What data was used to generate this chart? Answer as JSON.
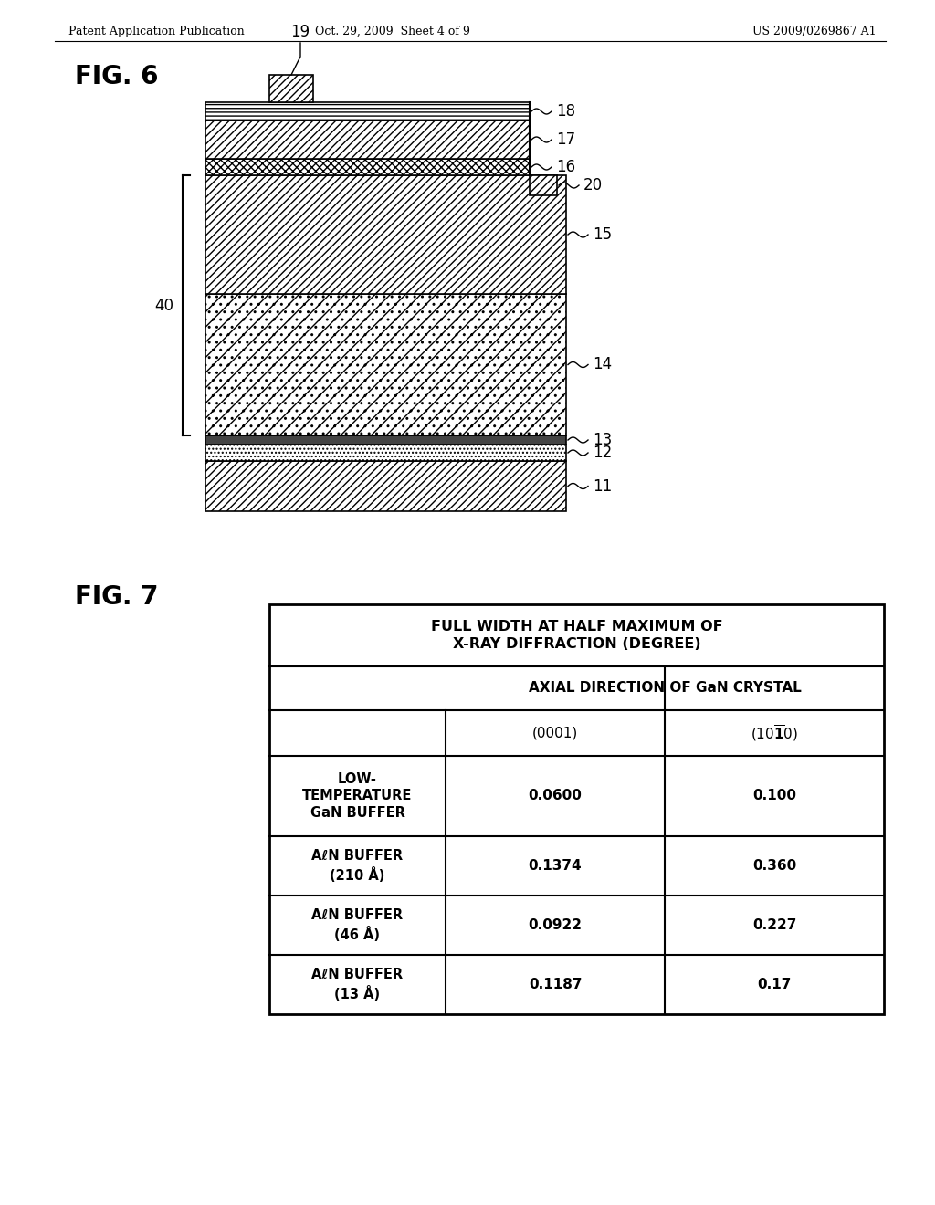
{
  "header_left": "Patent Application Publication",
  "header_center": "Oct. 29, 2009  Sheet 4 of 9",
  "header_right": "US 2009/0269867 A1",
  "fig6_label": "FIG. 6",
  "fig7_label": "FIG. 7",
  "background_color": "#ffffff",
  "text_color": "#000000",
  "table_header1": "FULL WIDTH AT HALF MAXIMUM OF\nX-RAY DIFFRACTION (DEGREE)",
  "table_header2": "AXIAL DIRECTION OF GaN CRYSTAL",
  "table_col1": "(0001)",
  "table_rows": [
    {
      "label": "LOW-\nTEMPERATURE\nGaN BUFFER",
      "val1": "0.0600",
      "val2": "0.100"
    },
    {
      "label": "AℓN BUFFER\n(210 Å)",
      "val1": "0.1374",
      "val2": "0.360"
    },
    {
      "label": "AℓN BUFFER\n(46 Å)",
      "val1": "0.0922",
      "val2": "0.227"
    },
    {
      "label": "AℓN BUFFER\n(13 Å)",
      "val1": "0.1187",
      "val2": "0.17"
    }
  ]
}
